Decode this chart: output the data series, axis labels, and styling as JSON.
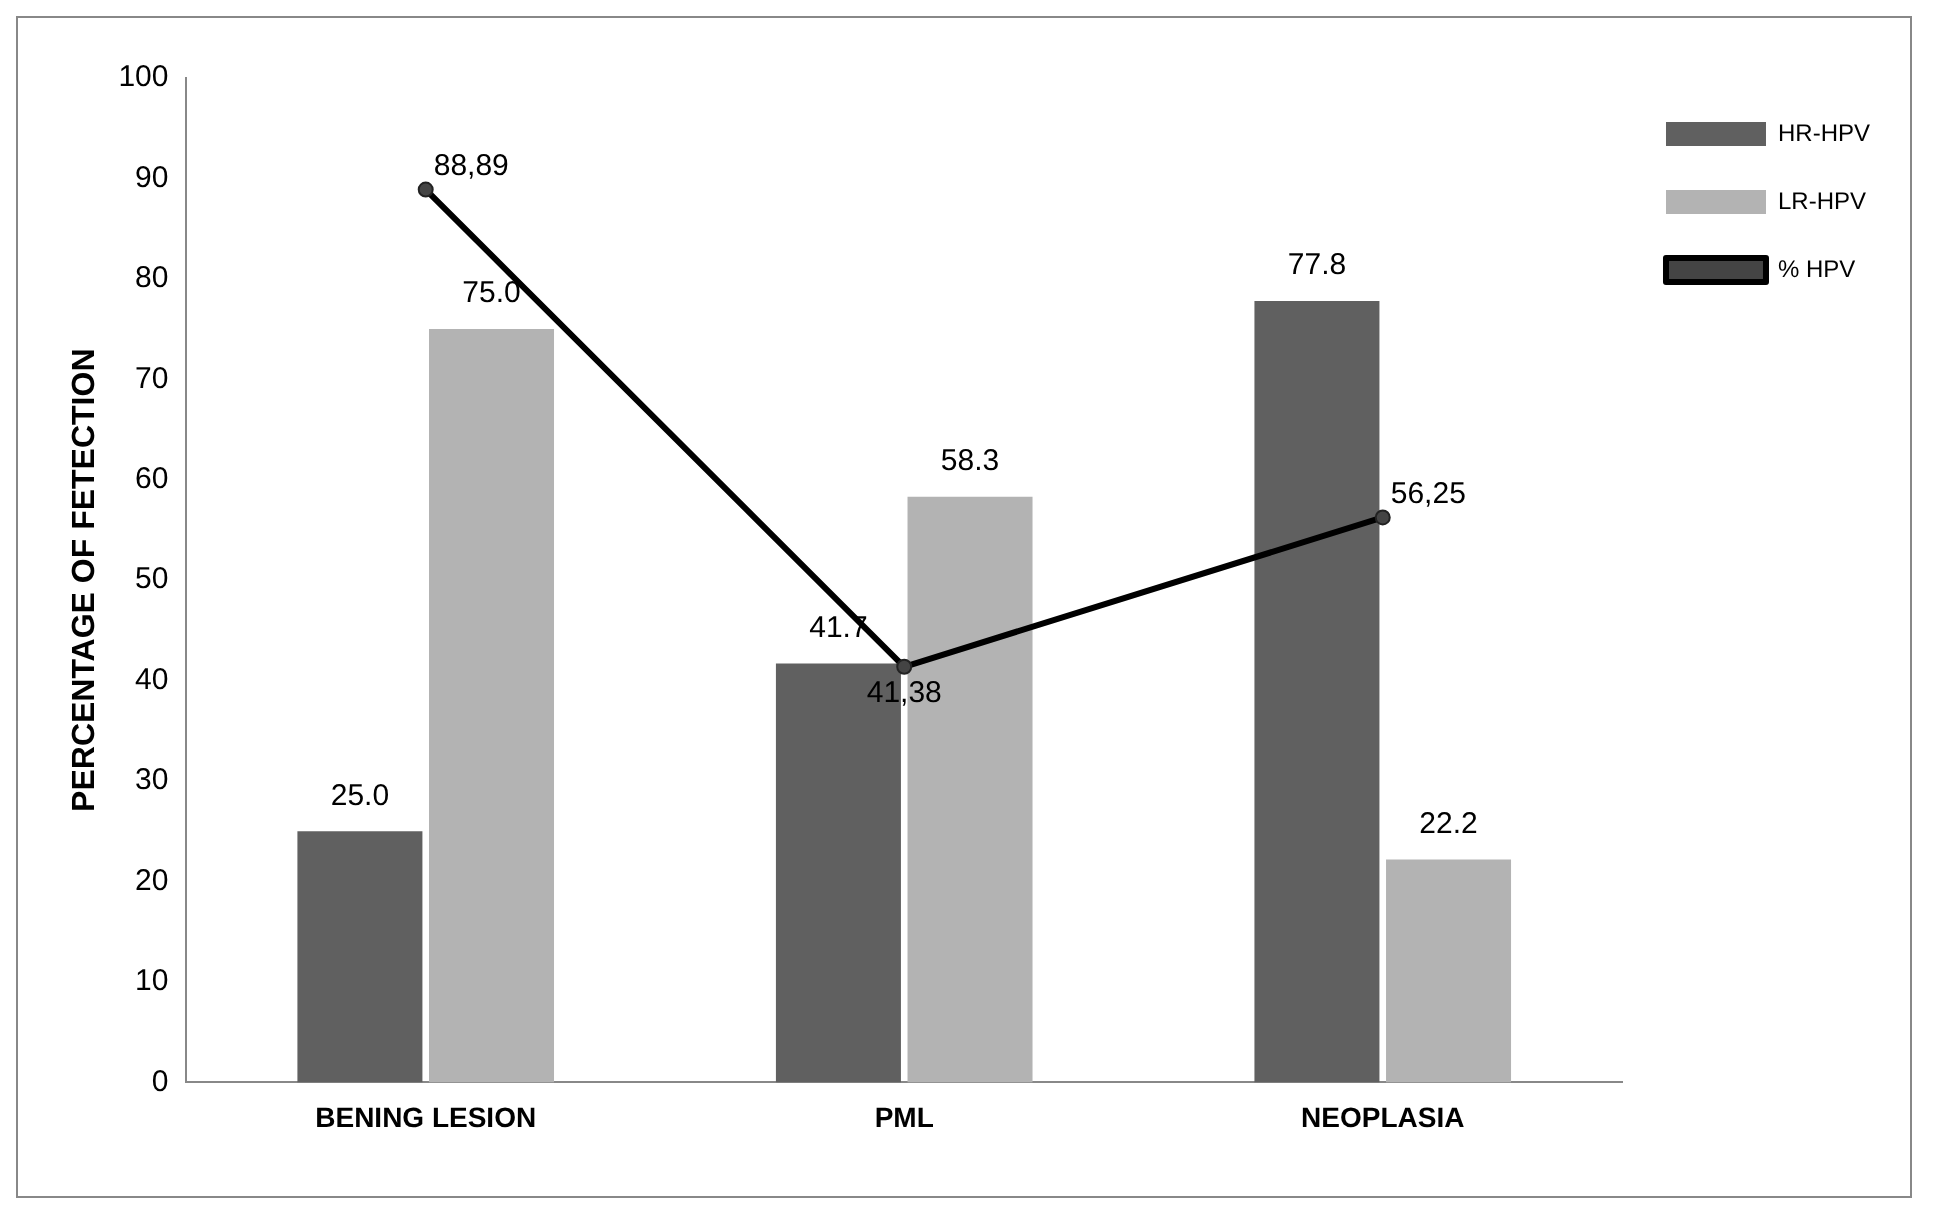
{
  "chart_data": {
    "type": "bar",
    "ylabel": "PERCENTAGE OF FETECTION",
    "categories": [
      "BENING LESION",
      "PML",
      "NEOPLASIA"
    ],
    "series": [
      {
        "name": "HR-HPV",
        "color": "#606060",
        "values": [
          25.0,
          41.7,
          77.8
        ],
        "value_labels": [
          "25.0",
          "41.7",
          "77.8"
        ]
      },
      {
        "name": "LR-HPV",
        "color": "#b3b3b3",
        "values": [
          75.0,
          58.3,
          22.2
        ],
        "value_labels": [
          "75.0",
          "58.3",
          "22.2"
        ]
      },
      {
        "name": "% HPV",
        "type": "line",
        "color": "#000000",
        "values": [
          88.89,
          41.38,
          56.25
        ],
        "value_labels": [
          "88,89",
          "41,38",
          "56,25"
        ]
      }
    ],
    "ylim": [
      0,
      100
    ],
    "yticks": [
      0,
      10,
      20,
      30,
      40,
      50,
      60,
      70,
      80,
      90,
      100
    ],
    "grid": false,
    "legend": "top right",
    "marker": "circle",
    "line_style": "solid"
  }
}
